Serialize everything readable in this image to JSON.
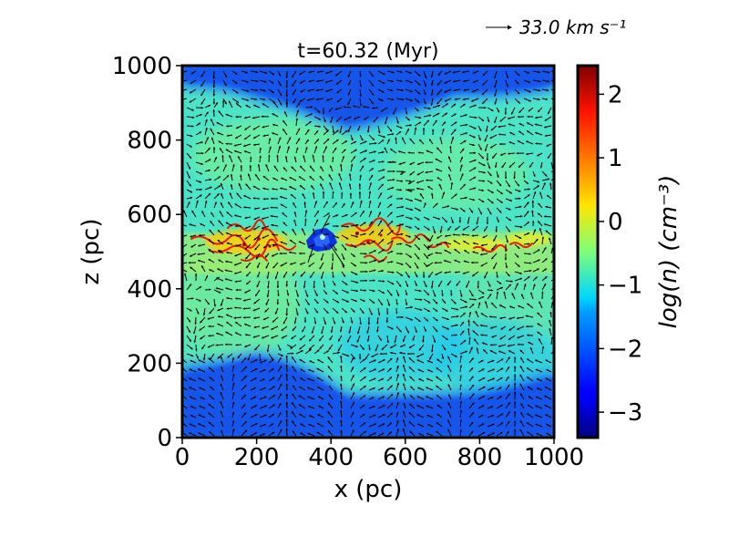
{
  "chart_data": {
    "type": "heatmap",
    "title": "t=60.32 (Myr)",
    "xlabel": "x (pc)",
    "ylabel": "z (pc)",
    "xlim": [
      0,
      1000
    ],
    "ylim": [
      0,
      1000
    ],
    "xticks": [
      0,
      200,
      400,
      600,
      800,
      1000
    ],
    "yticks": [
      0,
      200,
      400,
      600,
      800,
      1000
    ],
    "colorbar": {
      "label": "log(n) (cm⁻³)",
      "range": [
        -3.4,
        2.45
      ],
      "ticks": [
        -3,
        -2,
        -1,
        0,
        1,
        2
      ],
      "tick_labels": [
        "−3",
        "−2",
        "−1",
        "0",
        "1",
        "2"
      ],
      "colormap": "jet"
    },
    "quiver_key": {
      "label": "33.0 km s⁻¹",
      "value": 33.0
    },
    "regions": {
      "background_logn": -1.2,
      "dense_midplane_logn": 0.8,
      "upper_void_logn": -2.3,
      "lower_void_logn": -2.3,
      "bubble_logn": -2.2,
      "bubble_center_pc": [
        365,
        530
      ]
    }
  },
  "colors": {
    "frame": "#000000",
    "arrow": "#000000"
  }
}
